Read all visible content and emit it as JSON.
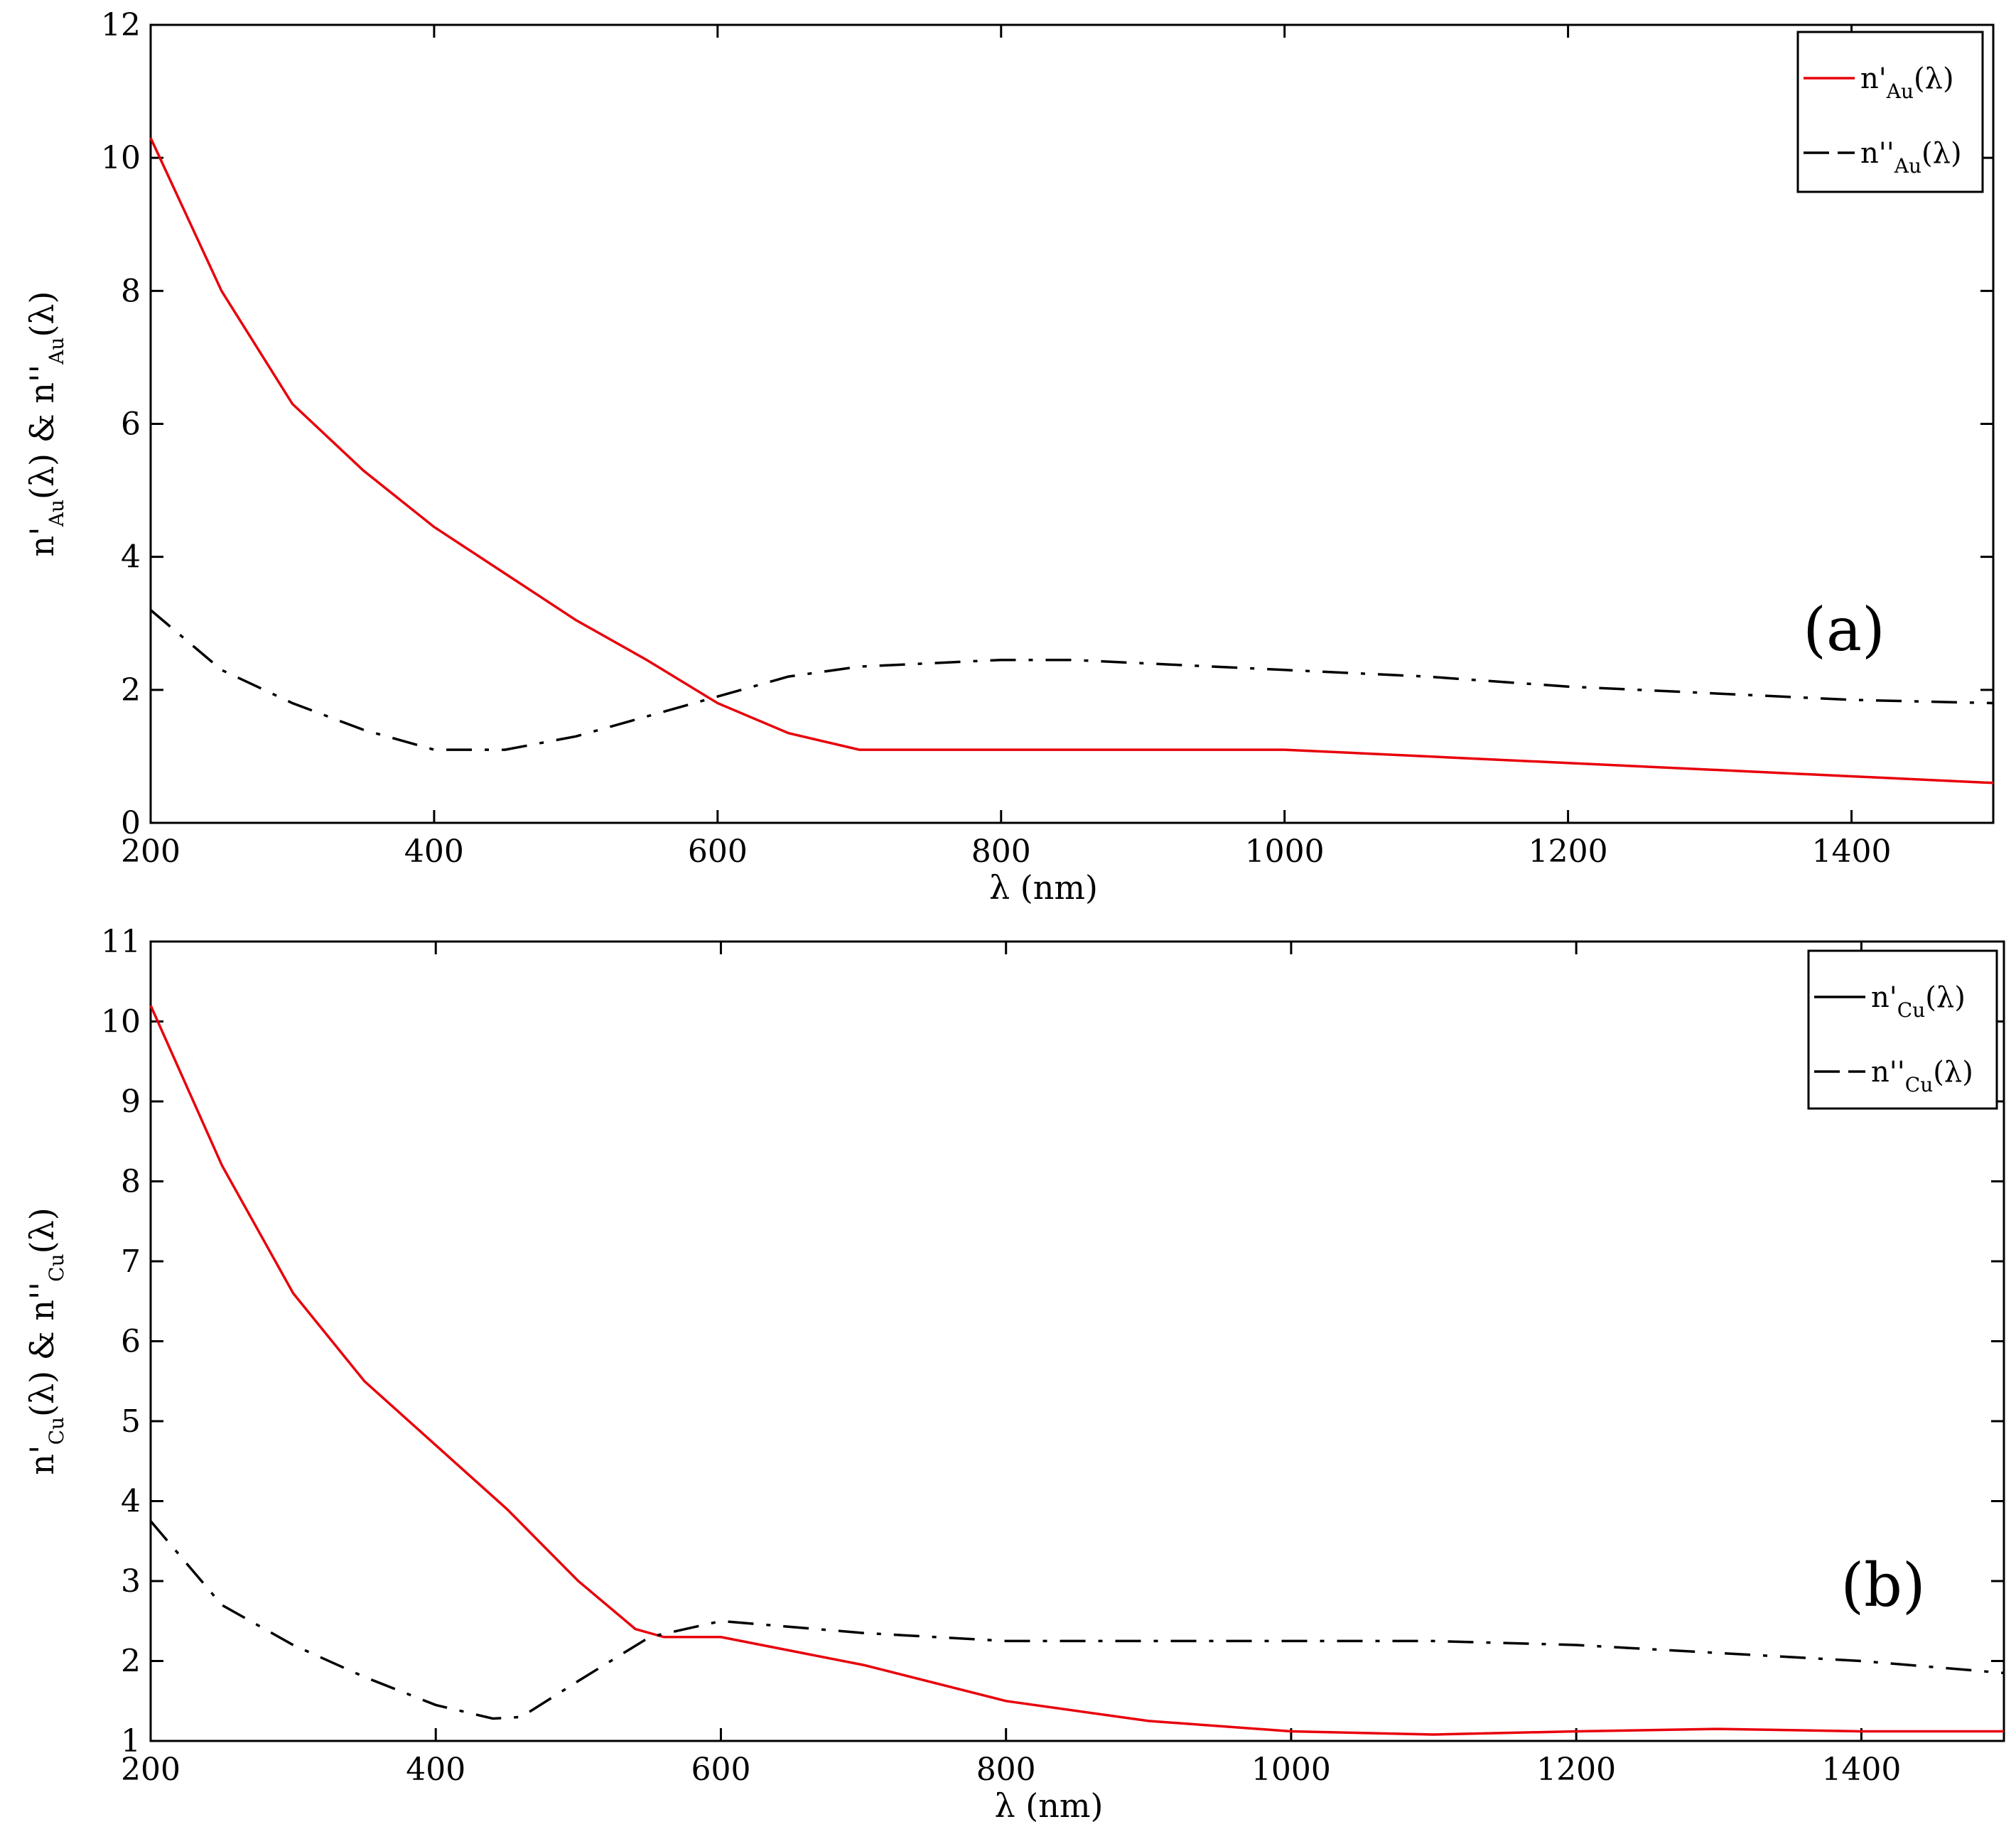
{
  "chart_data": [
    {
      "type": "line",
      "panel_label": "(a)",
      "xlabel": "λ (nm)",
      "ylabel": {
        "base": "n",
        "sub": "Au",
        "arg": "(λ)",
        "conj": "&"
      },
      "xlim": [
        200,
        1500
      ],
      "ylim": [
        0,
        12
      ],
      "xticks": [
        200,
        400,
        600,
        800,
        1000,
        1200,
        1400
      ],
      "yticks": [
        0,
        2,
        4,
        6,
        8,
        10,
        12
      ],
      "legend_position": "top-right",
      "series": [
        {
          "name": "n'Au(λ)",
          "legend": {
            "base": "n",
            "prime": "'",
            "sub": "Au",
            "arg": "(λ)"
          },
          "color": "#e8000b",
          "style": "solid",
          "x": [
            200,
            250,
            300,
            350,
            400,
            450,
            500,
            550,
            600,
            650,
            700,
            800,
            900,
            1000,
            1050,
            1100,
            1200,
            1300,
            1400,
            1500
          ],
          "y": [
            10.3,
            8.0,
            6.3,
            5.3,
            4.45,
            3.75,
            3.05,
            2.45,
            1.8,
            1.35,
            1.1,
            1.1,
            1.1,
            1.1,
            1.05,
            1.0,
            0.9,
            0.8,
            0.7,
            0.6
          ]
        },
        {
          "name": "n''Au(λ)",
          "legend": {
            "base": "n",
            "prime": "''",
            "sub": "Au",
            "arg": "(λ)"
          },
          "color": "#000000",
          "style": "dashdot",
          "x": [
            200,
            250,
            300,
            350,
            400,
            450,
            500,
            550,
            600,
            650,
            700,
            750,
            800,
            850,
            900,
            1000,
            1100,
            1200,
            1300,
            1400,
            1500
          ],
          "y": [
            3.2,
            2.3,
            1.8,
            1.4,
            1.1,
            1.1,
            1.3,
            1.6,
            1.9,
            2.2,
            2.35,
            2.4,
            2.45,
            2.45,
            2.4,
            2.3,
            2.2,
            2.05,
            1.95,
            1.85,
            1.8
          ]
        }
      ]
    },
    {
      "type": "line",
      "panel_label": "(b)",
      "xlabel": "λ (nm)",
      "ylabel": {
        "base": "n",
        "sub": "Cu",
        "arg": "(λ)",
        "conj": "&"
      },
      "xlim": [
        200,
        1500
      ],
      "ylim": [
        1,
        11
      ],
      "xticks": [
        200,
        400,
        600,
        800,
        1000,
        1200,
        1400
      ],
      "yticks": [
        1,
        2,
        3,
        4,
        5,
        6,
        7,
        8,
        9,
        10,
        11
      ],
      "legend_position": "top-right",
      "series": [
        {
          "name": "n'Cu(λ)",
          "legend": {
            "base": "n",
            "prime": "'",
            "sub": "Cu",
            "arg": "(λ)"
          },
          "color": "#e8000b",
          "legend_color": "#000000",
          "style": "solid",
          "x": [
            200,
            250,
            300,
            350,
            400,
            450,
            500,
            540,
            560,
            600,
            700,
            800,
            900,
            1000,
            1100,
            1200,
            1300,
            1400,
            1500
          ],
          "y": [
            10.2,
            8.2,
            6.6,
            5.5,
            4.7,
            3.9,
            3.0,
            2.4,
            2.3,
            2.3,
            1.95,
            1.5,
            1.25,
            1.12,
            1.08,
            1.12,
            1.15,
            1.12,
            1.12
          ]
        },
        {
          "name": "n''Cu(λ)",
          "legend": {
            "base": "n",
            "prime": "''",
            "sub": "Cu",
            "arg": "(λ)"
          },
          "color": "#000000",
          "style": "dashdot",
          "x": [
            200,
            250,
            300,
            350,
            400,
            440,
            460,
            500,
            550,
            600,
            700,
            800,
            900,
            1000,
            1100,
            1200,
            1300,
            1400,
            1500
          ],
          "y": [
            3.75,
            2.7,
            2.2,
            1.8,
            1.45,
            1.28,
            1.3,
            1.75,
            2.3,
            2.5,
            2.35,
            2.25,
            2.25,
            2.25,
            2.25,
            2.2,
            2.1,
            2.0,
            1.85
          ]
        }
      ]
    }
  ]
}
